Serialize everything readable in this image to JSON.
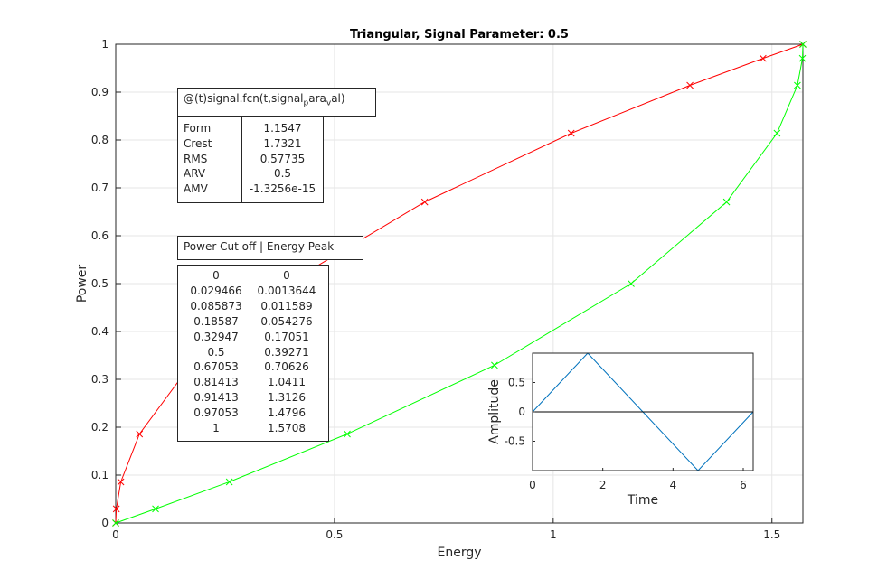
{
  "chart_data": [
    {
      "type": "line",
      "title": "Triangular, Signal Parameter: 0.5",
      "xlabel": "Energy",
      "ylabel": "Power",
      "xlim": [
        0,
        1.5708
      ],
      "ylim": [
        0,
        1
      ],
      "x_ticks": [
        "0",
        "0.5",
        "1",
        "1.5"
      ],
      "y_ticks": [
        "0",
        "0.1",
        "0.2",
        "0.3",
        "0.4",
        "0.5",
        "0.6",
        "0.7",
        "0.8",
        "0.9",
        "1"
      ],
      "grid": true,
      "series": [
        {
          "color": "#ff0000",
          "marker": "x",
          "x": [
            0,
            0.0013644,
            0.011589,
            0.054276,
            0.17051,
            0.39271,
            0.70626,
            1.0411,
            1.3126,
            1.4796,
            1.5708
          ],
          "y": [
            0,
            0.029466,
            0.085873,
            0.18587,
            0.32947,
            0.5,
            0.67053,
            0.81413,
            0.91413,
            0.97053,
            1
          ]
        },
        {
          "color": "#00ff00",
          "marker": "x",
          "x": [
            0,
            0.091,
            0.2597,
            0.5292,
            0.8658,
            1.1781,
            1.3963,
            1.5116,
            1.5582,
            1.5698,
            1.5708
          ],
          "y": [
            0,
            0.0295,
            0.0859,
            0.1859,
            0.3295,
            0.5,
            0.6705,
            0.8141,
            0.9141,
            0.9705,
            1
          ]
        }
      ]
    },
    {
      "type": "line",
      "title": "",
      "xlabel": "Time",
      "ylabel": "Amplitude",
      "xlim": [
        0,
        6.2832
      ],
      "ylim": [
        -1,
        1
      ],
      "x_ticks": [
        "0",
        "2",
        "4",
        "6"
      ],
      "y_ticks": [
        "-0.5",
        "0",
        "0.5"
      ],
      "series": [
        {
          "color": "#0072bd",
          "x": [
            0,
            1.5708,
            4.7124,
            6.2832
          ],
          "y": [
            0,
            1,
            -1,
            0
          ]
        },
        {
          "color": "#000000",
          "x": [
            0,
            6.2832
          ],
          "y": [
            0,
            0
          ]
        }
      ]
    }
  ],
  "annotations": {
    "function_box": "@(t)signal.fcn(t,signal_para_val)",
    "stats": {
      "labels": [
        "Form",
        "Crest",
        "RMS",
        "ARV",
        "AMV"
      ],
      "values": [
        "1.1547",
        "1.7321",
        "0.57735",
        "0.5",
        "-1.3256e-15"
      ]
    },
    "power_energy_title": "Power Cut off | Energy Peak",
    "power_energy_rows": [
      [
        "0",
        "0"
      ],
      [
        "0.029466",
        "0.0013644"
      ],
      [
        "0.085873",
        "0.011589"
      ],
      [
        "0.18587",
        "0.054276"
      ],
      [
        "0.32947",
        "0.17051"
      ],
      [
        "0.5",
        "0.39271"
      ],
      [
        "0.67053",
        "0.70626"
      ],
      [
        "0.81413",
        "1.0411"
      ],
      [
        "0.91413",
        "1.3126"
      ],
      [
        "0.97053",
        "1.4796"
      ],
      [
        "1",
        "1.5708"
      ]
    ]
  }
}
